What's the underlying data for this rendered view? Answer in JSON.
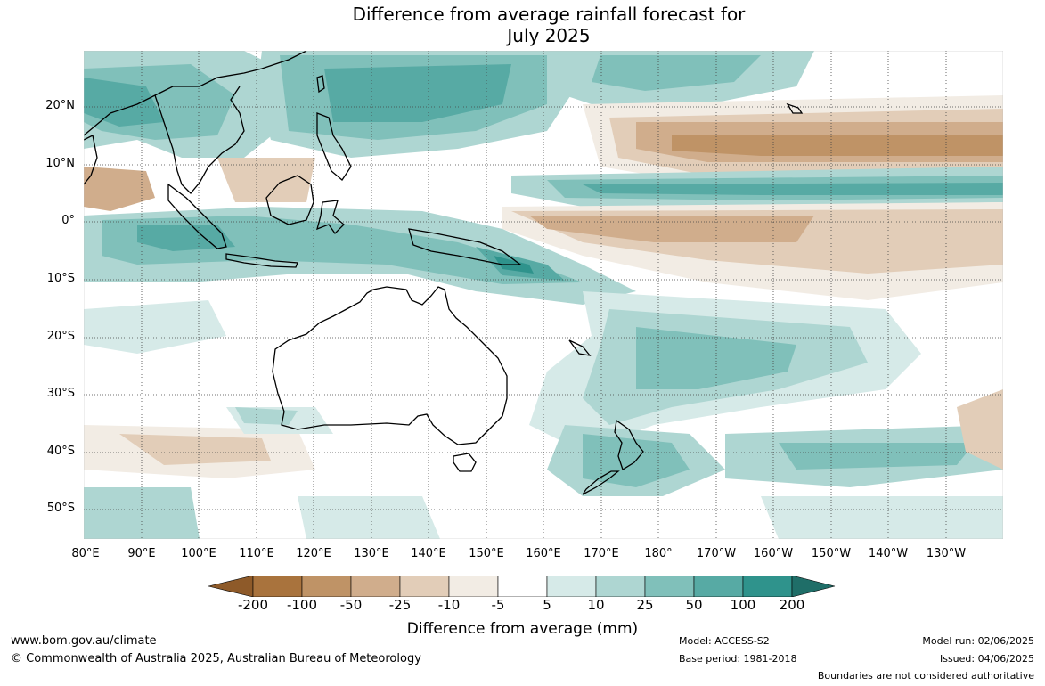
{
  "title": {
    "line1": "Difference from average rainfall forecast for",
    "line2": "July 2025"
  },
  "map": {
    "lat_labels": [
      "20°N",
      "10°N",
      "0°",
      "10°S",
      "20°S",
      "30°S",
      "40°S",
      "50°S"
    ],
    "lon_labels": [
      "80°E",
      "90°E",
      "100°E",
      "110°E",
      "120°E",
      "130°E",
      "140°E",
      "150°E",
      "160°E",
      "170°E",
      "180°",
      "170°W",
      "160°W",
      "150°W",
      "140°W",
      "130°W"
    ]
  },
  "colorbar": {
    "ticks": [
      "-200",
      "-100",
      "-50",
      "-25",
      "-10",
      "-5",
      "5",
      "10",
      "25",
      "50",
      "100",
      "200"
    ],
    "colors": [
      "#a9733d",
      "#bf9366",
      "#d0ad8c",
      "#e2cdb8",
      "#f2ece4",
      "#ffffff",
      "#d6eae8",
      "#aed6d2",
      "#80c0ba",
      "#57aaa4",
      "#2f938c"
    ],
    "end_colors": [
      "#8e5a29",
      "#1f6e68"
    ],
    "label": "Difference from average (mm)"
  },
  "footer": {
    "website": "www.bom.gov.au/climate",
    "copyright": "© Commonwealth of Australia 2025, Australian Bureau of Meteorology",
    "model": "Model: ACCESS-S2",
    "base_period": "Base period: 1981-2018",
    "model_run": "Model run: 02/06/2025",
    "issued": "Issued: 04/06/2025",
    "disclaimer": "Boundaries are not considered authoritative"
  }
}
